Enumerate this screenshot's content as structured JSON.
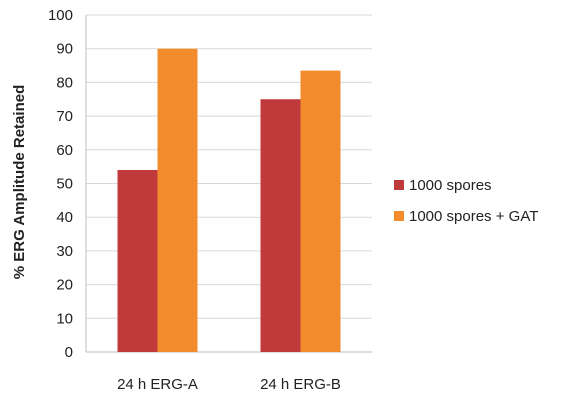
{
  "chart_data": {
    "type": "bar",
    "title": "",
    "xlabel": "",
    "ylabel": "% ERG Amplitude Retained",
    "ylim": [
      0,
      100
    ],
    "yticks": [
      0,
      10,
      20,
      30,
      40,
      50,
      60,
      70,
      80,
      90,
      100
    ],
    "categories": [
      "24 h ERG-A",
      "24 h ERG-B"
    ],
    "series": [
      {
        "name": "1000 spores",
        "values": [
          54,
          75
        ],
        "color": "#c0393b"
      },
      {
        "name": "1000 spores + GAT",
        "values": [
          90,
          83.5
        ],
        "color": "#f28b2c"
      }
    ],
    "grid": true,
    "legend_position": "right"
  }
}
